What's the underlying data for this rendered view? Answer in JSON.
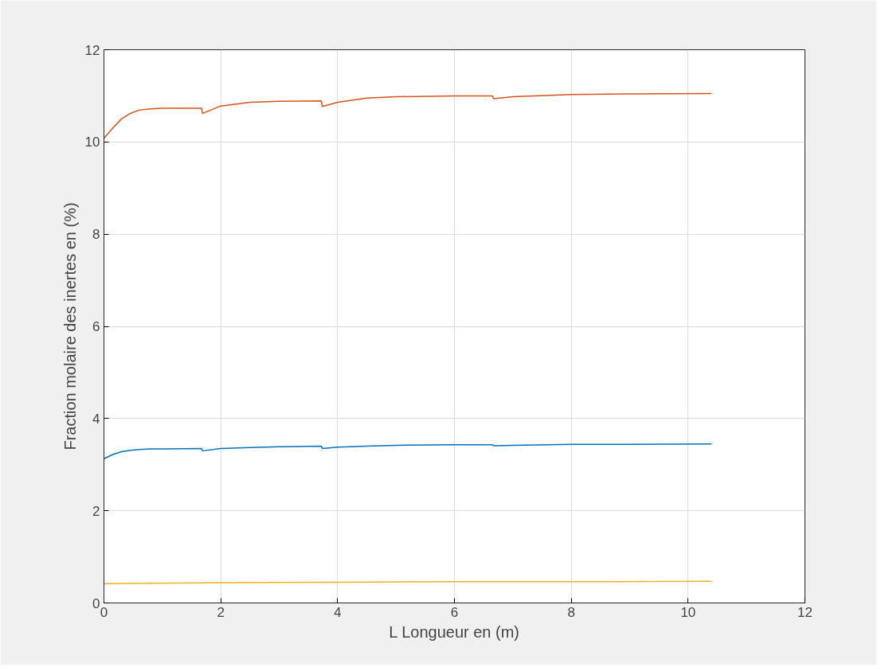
{
  "chart_data": {
    "type": "line",
    "xlabel": "L Longueur en (m)",
    "ylabel": "Fraction molaire des inertes en (%)",
    "xlim": [
      0,
      12
    ],
    "ylim": [
      0,
      12
    ],
    "xticks": [
      0,
      2,
      4,
      6,
      8,
      10,
      12
    ],
    "yticks": [
      0,
      2,
      4,
      6,
      8,
      10,
      12
    ],
    "grid": true,
    "line_style": "solid",
    "series": [
      {
        "color": "#0072bd",
        "x": [
          0,
          0.15,
          0.3,
          0.45,
          0.6,
          0.8,
          1.0,
          1.67,
          1.69,
          2.0,
          2.5,
          3.0,
          3.72,
          3.74,
          4.0,
          4.5,
          5.0,
          6.0,
          6.65,
          6.67,
          7.0,
          8.0,
          9.0,
          10.4
        ],
        "values": [
          3.13,
          3.22,
          3.28,
          3.31,
          3.33,
          3.34,
          3.34,
          3.35,
          3.3,
          3.35,
          3.37,
          3.39,
          3.4,
          3.35,
          3.38,
          3.4,
          3.42,
          3.43,
          3.43,
          3.41,
          3.42,
          3.44,
          3.44,
          3.45
        ]
      },
      {
        "color": "#d95319",
        "x": [
          0,
          0.15,
          0.3,
          0.45,
          0.6,
          0.8,
          1.0,
          1.67,
          1.69,
          2.0,
          2.5,
          3.0,
          3.72,
          3.74,
          4.0,
          4.5,
          5.0,
          6.0,
          6.65,
          6.67,
          7.0,
          8.0,
          9.0,
          10.4
        ],
        "values": [
          10.08,
          10.3,
          10.5,
          10.62,
          10.69,
          10.72,
          10.73,
          10.73,
          10.62,
          10.78,
          10.86,
          10.88,
          10.89,
          10.77,
          10.86,
          10.95,
          10.98,
          11.0,
          11.0,
          10.94,
          10.98,
          11.03,
          11.04,
          11.05
        ]
      },
      {
        "color": "#edb120",
        "x": [
          0,
          2,
          4,
          6,
          8,
          10.4
        ],
        "values": [
          0.42,
          0.44,
          0.45,
          0.46,
          0.46,
          0.47
        ]
      }
    ]
  }
}
